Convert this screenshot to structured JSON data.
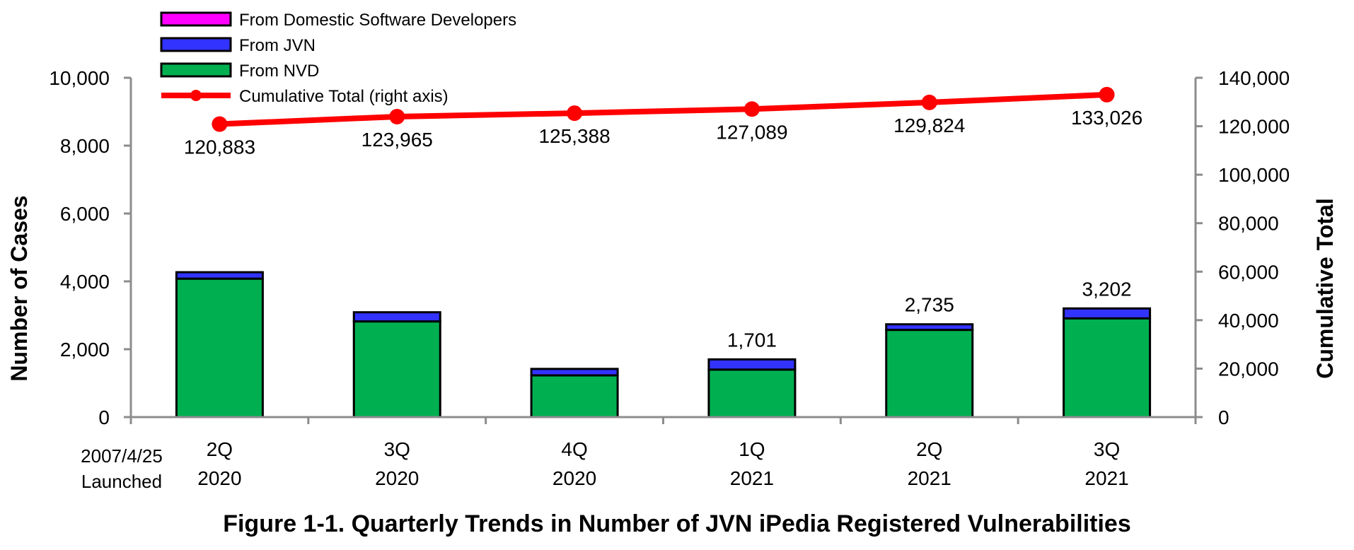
{
  "chart_data": {
    "type": "bar",
    "stacked": true,
    "title": "Figure 1-1. Quarterly Trends in Number of JVN iPedia Registered Vulnerabilities",
    "ylabel": "Number of Cases",
    "y2label": "Cumulative Total",
    "ylim": [
      0,
      10000
    ],
    "y2lim": [
      0,
      140000
    ],
    "yticks": [
      "0",
      "2,000",
      "4,000",
      "6,000",
      "8,000",
      "10,000"
    ],
    "y2ticks": [
      "0",
      "20,000",
      "40,000",
      "60,000",
      "80,000",
      "100,000",
      "120,000",
      "140,000"
    ],
    "categories": [
      {
        "quarter": "2Q",
        "year": "2020"
      },
      {
        "quarter": "3Q",
        "year": "2020"
      },
      {
        "quarter": "4Q",
        "year": "2020"
      },
      {
        "quarter": "1Q",
        "year": "2021"
      },
      {
        "quarter": "2Q",
        "year": "2021"
      },
      {
        "quarter": "3Q",
        "year": "2021"
      }
    ],
    "x_note": [
      "2007/4/25",
      "Launched"
    ],
    "series": [
      {
        "name": "From NVD",
        "color": "#00b050",
        "values": [
          4080,
          2820,
          1230,
          1400,
          2570,
          2910
        ]
      },
      {
        "name": "From JVN",
        "color": "#3333ff",
        "values": [
          190,
          270,
          190,
          301,
          165,
          292
        ]
      },
      {
        "name": "From Domestic Software Developers",
        "color": "#ff00ff",
        "values": [
          0,
          0,
          0,
          0,
          0,
          0
        ]
      }
    ],
    "bar_labels": [
      "",
      "",
      "",
      "1,701",
      "2,735",
      "3,202"
    ],
    "line": {
      "name": "Cumulative Total (right axis)",
      "color": "#ff0000",
      "values": [
        120883,
        123965,
        125388,
        127089,
        129824,
        133026
      ],
      "labels": [
        "120,883",
        "123,965",
        "125,388",
        "127,089",
        "129,824",
        "133,026"
      ]
    },
    "legend_position": "top-left",
    "grid": false
  }
}
